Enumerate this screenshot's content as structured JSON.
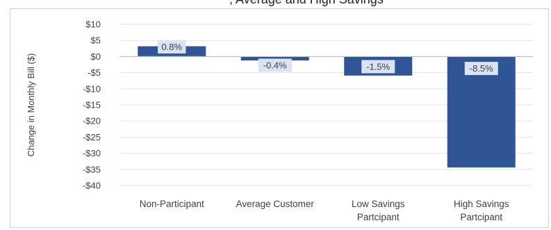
{
  "header_fragment": ", Average and High Savings",
  "chart_data": {
    "type": "bar",
    "title": "",
    "xlabel": "",
    "ylabel": "Change in Monthly Bill ($)",
    "ylim": [
      -40,
      10
    ],
    "yticks": [
      10,
      5,
      0,
      -5,
      -10,
      -15,
      -20,
      -25,
      -30,
      -35,
      -40
    ],
    "ytick_labels": [
      "$10",
      "$5",
      "$0",
      "-$5",
      "-$10",
      "-$15",
      "-$20",
      "-$25",
      "-$30",
      "-$35",
      "-$40"
    ],
    "grid": true,
    "legend": "none",
    "categories": [
      [
        "Non-Participant"
      ],
      [
        "Average Customer"
      ],
      [
        "Low Savings",
        "Partcipant"
      ],
      [
        "High Savings",
        "Partcipant"
      ]
    ],
    "values": [
      3.2,
      -1.2,
      -5.9,
      -34.4
    ],
    "data_labels": [
      "0.8%",
      "-0.4%",
      "-1.5%",
      "-8.5%"
    ],
    "colors": {
      "bar": "#2f5597",
      "grid": "#e3e3e3",
      "axis": "#bfbfbf",
      "label_bg": "#dae3f3"
    }
  }
}
